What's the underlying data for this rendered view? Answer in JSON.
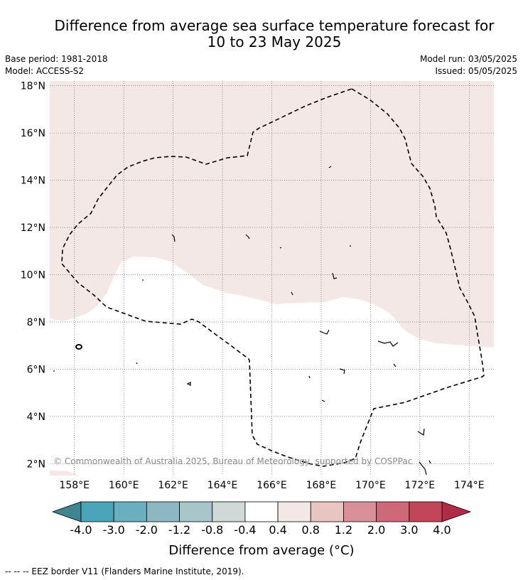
{
  "header": {
    "title_line1": "Difference from average sea surface temperature forecast for",
    "title_line2": "10 to 23 May 2025",
    "base_period": "Base period: 1981-2018",
    "model": "Model: ACCESS-S2",
    "model_run": "Model run: 03/05/2025",
    "issued": "Issued: 05/05/2025"
  },
  "map": {
    "lat_labels": [
      "18°N",
      "16°N",
      "14°N",
      "12°N",
      "10°N",
      "8°N",
      "6°N",
      "4°N",
      "2°N"
    ],
    "lon_labels": [
      "158°E",
      "160°E",
      "162°E",
      "164°E",
      "166°E",
      "168°E",
      "170°E",
      "172°E",
      "174°E"
    ],
    "lat_range": [
      1.5,
      18.2
    ],
    "lon_range": [
      157.0,
      175.0
    ],
    "shaded_category": "0.4 to 0.8",
    "shaded_color": "#f4e8e7",
    "border_style": "dashed",
    "copyright": "© Commonwealth of Australia 2025, Bureau of Meteorology, supported by COSPPac"
  },
  "colorbar": {
    "tick_labels": [
      "-4.0",
      "-3.0",
      "-2.0",
      "-1.2",
      "-0.8",
      "-0.4",
      "0.4",
      "0.8",
      "1.2",
      "2.0",
      "3.0",
      "4.0"
    ],
    "colors": [
      "#3f8691",
      "#4aa5b8",
      "#6aafbf",
      "#8bb8c3",
      "#a8c6ca",
      "#d1d9d8",
      "#ffffff",
      "#f4e8e7",
      "#e9c5c2",
      "#da9099",
      "#cd6978",
      "#c14659",
      "#b12a46"
    ],
    "label": "Difference from average (°C)"
  },
  "footer": {
    "legend": "--  --  -- EEZ border V11 (Flanders Marine Institute, 2019)."
  }
}
